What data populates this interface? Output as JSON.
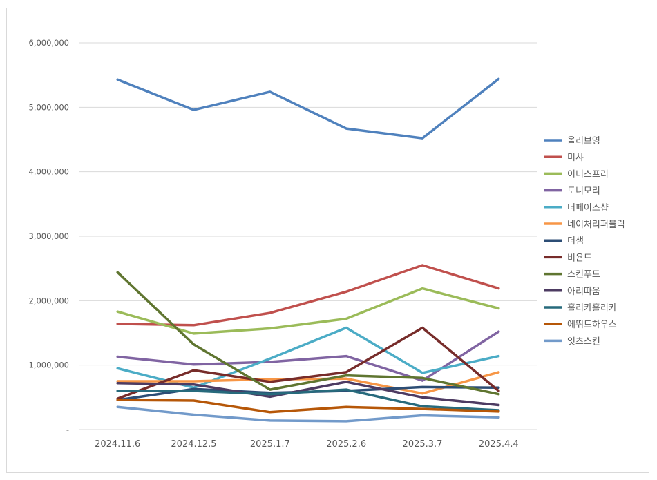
{
  "chart_data": {
    "type": "line",
    "title": "",
    "xlabel": "",
    "ylabel": "",
    "categories": [
      "2024.11.6",
      "2024.12.5",
      "2025.1.7",
      "2025.2.6",
      "2025.3.7",
      "2025.4.4"
    ],
    "ylim": [
      0,
      6000000
    ],
    "yticks": [
      0,
      1000000,
      2000000,
      3000000,
      4000000,
      5000000,
      6000000
    ],
    "ytick_labels": [
      "-",
      "1,000,000",
      "2,000,000",
      "3,000,000",
      "4,000,000",
      "5,000,000",
      "6,000,000"
    ],
    "grid": true,
    "legend_position": "right",
    "series": [
      {
        "name": "올리브영",
        "color": "#4F81BD",
        "values": [
          5430000,
          4960000,
          5240000,
          4670000,
          4520000,
          5440000
        ]
      },
      {
        "name": "미샤",
        "color": "#C0504D",
        "values": [
          1640000,
          1620000,
          1810000,
          2140000,
          2550000,
          2190000
        ]
      },
      {
        "name": "이니스프리",
        "color": "#9BBB59",
        "values": [
          1830000,
          1490000,
          1570000,
          1720000,
          2190000,
          1880000
        ]
      },
      {
        "name": "토니모리",
        "color": "#8064A2",
        "values": [
          1130000,
          1010000,
          1050000,
          1140000,
          760000,
          1520000
        ]
      },
      {
        "name": "더페이스샵",
        "color": "#4BACC6",
        "values": [
          950000,
          650000,
          1100000,
          1580000,
          880000,
          1140000
        ]
      },
      {
        "name": "네이처리퍼블릭",
        "color": "#F79646",
        "values": [
          750000,
          750000,
          780000,
          790000,
          560000,
          890000
        ]
      },
      {
        "name": "더샘",
        "color": "#2C4D75",
        "values": [
          460000,
          630000,
          570000,
          600000,
          660000,
          650000
        ]
      },
      {
        "name": "비욘드",
        "color": "#772C2A",
        "values": [
          480000,
          920000,
          740000,
          890000,
          1580000,
          600000
        ]
      },
      {
        "name": "스킨푸드",
        "color": "#5F7530",
        "values": [
          2440000,
          1320000,
          620000,
          840000,
          800000,
          550000
        ]
      },
      {
        "name": "아리따움",
        "color": "#4D3B62",
        "values": [
          720000,
          700000,
          510000,
          740000,
          500000,
          380000
        ]
      },
      {
        "name": "홀리카홀리카",
        "color": "#276A7C",
        "values": [
          600000,
          600000,
          550000,
          620000,
          360000,
          300000
        ]
      },
      {
        "name": "에뛰드하우스",
        "color": "#B65708",
        "values": [
          460000,
          450000,
          270000,
          350000,
          320000,
          280000
        ]
      },
      {
        "name": "잇츠스킨",
        "color": "#729ACA",
        "values": [
          350000,
          230000,
          140000,
          130000,
          220000,
          190000
        ]
      }
    ]
  }
}
